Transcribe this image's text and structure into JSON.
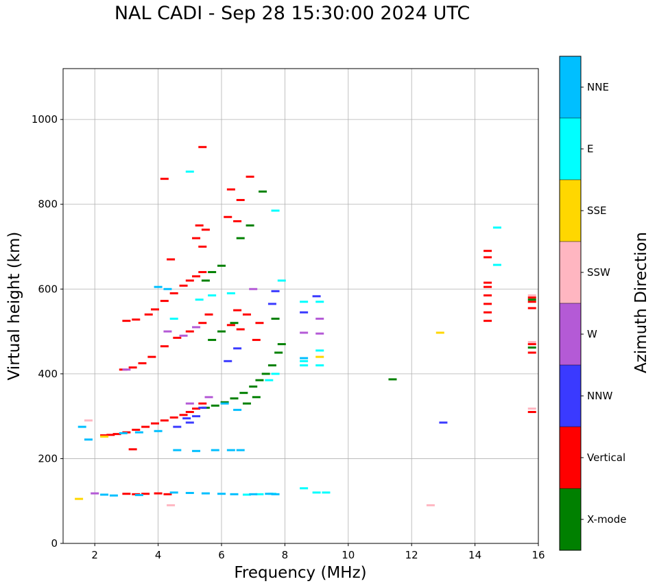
{
  "chart_data": {
    "type": "scatter",
    "title": "NAL CADI - Sep 28 15:30:00 2024 UTC",
    "xlabel": "Frequency (MHz)",
    "ylabel": "Virtual height (km)",
    "xlim": [
      1,
      16
    ],
    "ylim": [
      0,
      1120
    ],
    "xticks": [
      2,
      4,
      6,
      8,
      10,
      12,
      14,
      16
    ],
    "yticks": [
      0,
      200,
      400,
      600,
      800,
      1000
    ],
    "grid": true,
    "colorbar": {
      "label": "Azimuth Direction",
      "categories": [
        "X-mode",
        "Vertical",
        "NNW",
        "W",
        "SSW",
        "SSE",
        "E",
        "NNE"
      ],
      "colors": [
        "#008000",
        "#ff0000",
        "#3a3aff",
        "#b45ad6",
        "#ffb6c1",
        "#ffd700",
        "#00ffff",
        "#00bfff"
      ]
    },
    "series": [
      {
        "name": "Vertical",
        "points": [
          [
            2.3,
            255
          ],
          [
            2.5,
            256
          ],
          [
            2.7,
            258
          ],
          [
            3.0,
            262
          ],
          [
            3.3,
            268
          ],
          [
            3.6,
            275
          ],
          [
            3.9,
            283
          ],
          [
            4.2,
            290
          ],
          [
            4.5,
            297
          ],
          [
            4.8,
            303
          ],
          [
            5.0,
            310
          ],
          [
            5.2,
            318
          ],
          [
            5.4,
            330
          ],
          [
            3.0,
            525
          ],
          [
            3.3,
            528
          ],
          [
            3.7,
            540
          ],
          [
            3.9,
            552
          ],
          [
            4.2,
            572
          ],
          [
            4.5,
            590
          ],
          [
            4.8,
            608
          ],
          [
            5.0,
            620
          ],
          [
            5.2,
            630
          ],
          [
            5.4,
            640
          ],
          [
            2.9,
            410
          ],
          [
            3.2,
            415
          ],
          [
            3.5,
            425
          ],
          [
            3.8,
            440
          ],
          [
            4.2,
            465
          ],
          [
            4.6,
            485
          ],
          [
            5.0,
            500
          ],
          [
            5.4,
            520
          ],
          [
            5.6,
            540
          ],
          [
            6.3,
            515
          ],
          [
            6.6,
            505
          ],
          [
            7.1,
            480
          ],
          [
            4.2,
            860
          ],
          [
            5.4,
            935
          ],
          [
            5.3,
            750
          ],
          [
            5.5,
            740
          ],
          [
            6.2,
            770
          ],
          [
            6.5,
            760
          ],
          [
            6.3,
            835
          ],
          [
            6.6,
            810
          ],
          [
            6.9,
            865
          ],
          [
            5.2,
            720
          ],
          [
            5.4,
            700
          ],
          [
            4.4,
            670
          ],
          [
            6.5,
            550
          ],
          [
            6.8,
            540
          ],
          [
            7.2,
            520
          ],
          [
            14.4,
            525
          ],
          [
            14.4,
            545
          ],
          [
            14.4,
            565
          ],
          [
            14.4,
            585
          ],
          [
            14.4,
            605
          ],
          [
            14.4,
            615
          ],
          [
            14.4,
            675
          ],
          [
            14.4,
            690
          ],
          [
            15.8,
            580
          ],
          [
            15.8,
            570
          ],
          [
            15.8,
            555
          ],
          [
            15.8,
            470
          ],
          [
            15.8,
            450
          ],
          [
            15.8,
            310
          ],
          [
            3.0,
            117
          ],
          [
            3.3,
            116
          ],
          [
            3.6,
            117
          ],
          [
            4.0,
            118
          ],
          [
            4.3,
            116
          ],
          [
            3.2,
            222
          ]
        ]
      },
      {
        "name": "X-mode",
        "points": [
          [
            5.5,
            320
          ],
          [
            5.8,
            325
          ],
          [
            6.1,
            333
          ],
          [
            6.4,
            342
          ],
          [
            6.7,
            355
          ],
          [
            7.0,
            370
          ],
          [
            7.2,
            385
          ],
          [
            7.4,
            400
          ],
          [
            7.6,
            420
          ],
          [
            7.8,
            450
          ],
          [
            7.9,
            470
          ],
          [
            6.0,
            655
          ],
          [
            5.7,
            640
          ],
          [
            5.5,
            620
          ],
          [
            6.6,
            720
          ],
          [
            6.9,
            750
          ],
          [
            7.3,
            830
          ],
          [
            5.7,
            480
          ],
          [
            6.0,
            500
          ],
          [
            6.4,
            520
          ],
          [
            7.7,
            530
          ],
          [
            11.4,
            387
          ],
          [
            15.8,
            575
          ],
          [
            15.8,
            462
          ],
          [
            6.8,
            330
          ],
          [
            7.1,
            345
          ]
        ]
      },
      {
        "name": "NNW",
        "points": [
          [
            4.9,
            295
          ],
          [
            5.2,
            300
          ],
          [
            4.6,
            275
          ],
          [
            5.4,
            320
          ],
          [
            6.2,
            430
          ],
          [
            6.5,
            460
          ],
          [
            7.6,
            565
          ],
          [
            9.0,
            583
          ],
          [
            8.6,
            545
          ],
          [
            13.0,
            285
          ],
          [
            7.7,
            595
          ],
          [
            5.0,
            285
          ]
        ]
      },
      {
        "name": "W",
        "points": [
          [
            3.0,
            410
          ],
          [
            4.3,
            500
          ],
          [
            4.8,
            490
          ],
          [
            5.0,
            330
          ],
          [
            5.6,
            345
          ],
          [
            9.1,
            495
          ],
          [
            9.1,
            530
          ],
          [
            7.0,
            600
          ],
          [
            2.0,
            118
          ],
          [
            5.2,
            510
          ],
          [
            8.6,
            497
          ]
        ]
      },
      {
        "name": "SSW",
        "points": [
          [
            1.8,
            290
          ],
          [
            4.4,
            90
          ],
          [
            12.6,
            90
          ],
          [
            15.8,
            585
          ],
          [
            15.8,
            475
          ],
          [
            15.8,
            318
          ]
        ]
      },
      {
        "name": "SSE",
        "points": [
          [
            12.9,
            497
          ],
          [
            9.1,
            440
          ],
          [
            2.3,
            252
          ],
          [
            1.5,
            105
          ]
        ]
      },
      {
        "name": "E",
        "points": [
          [
            5.0,
            877
          ],
          [
            5.7,
            585
          ],
          [
            6.3,
            590
          ],
          [
            7.7,
            785
          ],
          [
            7.9,
            620
          ],
          [
            14.7,
            745
          ],
          [
            14.7,
            657
          ],
          [
            8.6,
            570
          ],
          [
            9.1,
            570
          ],
          [
            9.1,
            455
          ],
          [
            8.6,
            430
          ],
          [
            8.6,
            420
          ],
          [
            9.1,
            420
          ],
          [
            7.7,
            400
          ],
          [
            7.5,
            385
          ],
          [
            8.6,
            130
          ],
          [
            9.0,
            120
          ],
          [
            9.3,
            120
          ],
          [
            4.5,
            530
          ],
          [
            5.3,
            575
          ],
          [
            6.8,
            115
          ],
          [
            7.2,
            116
          ],
          [
            7.6,
            117
          ]
        ]
      },
      {
        "name": "NNE",
        "points": [
          [
            2.3,
            115
          ],
          [
            2.6,
            113
          ],
          [
            3.4,
            114
          ],
          [
            4.5,
            120
          ],
          [
            5.0,
            119
          ],
          [
            5.5,
            118
          ],
          [
            6.0,
            117
          ],
          [
            6.4,
            116
          ],
          [
            7.0,
            116
          ],
          [
            7.5,
            117
          ],
          [
            7.7,
            116
          ],
          [
            6.3,
            220
          ],
          [
            6.6,
            220
          ],
          [
            5.8,
            220
          ],
          [
            5.2,
            218
          ],
          [
            4.6,
            220
          ],
          [
            2.9,
            260
          ],
          [
            3.4,
            262
          ],
          [
            4.0,
            265
          ],
          [
            4.3,
            600
          ],
          [
            6.5,
            315
          ],
          [
            6.1,
            330
          ],
          [
            8.6,
            437
          ],
          [
            4.0,
            605
          ],
          [
            1.6,
            275
          ],
          [
            1.8,
            245
          ]
        ]
      }
    ]
  }
}
